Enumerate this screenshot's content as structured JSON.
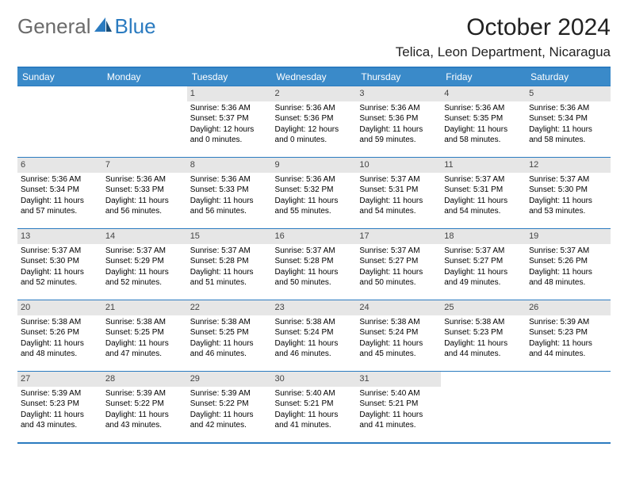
{
  "logo": {
    "general": "General",
    "blue": "Blue"
  },
  "title": "October 2024",
  "location": "Telica, Leon Department, Nicaragua",
  "colors": {
    "header_bg": "#3a8ac9",
    "border": "#2b7bc0",
    "daynum_bg": "#e6e6e6",
    "text": "#000000",
    "title_color": "#222222"
  },
  "layout": {
    "cols": 7,
    "rows": 5,
    "first_weekday": "Sunday",
    "col_width_pct": 14.28
  },
  "weekdays": [
    "Sunday",
    "Monday",
    "Tuesday",
    "Wednesday",
    "Thursday",
    "Friday",
    "Saturday"
  ],
  "weeks": [
    [
      {
        "day": "",
        "sunrise": "",
        "sunset": "",
        "daylight": ""
      },
      {
        "day": "",
        "sunrise": "",
        "sunset": "",
        "daylight": ""
      },
      {
        "day": "1",
        "sunrise": "Sunrise: 5:36 AM",
        "sunset": "Sunset: 5:37 PM",
        "daylight": "Daylight: 12 hours and 0 minutes."
      },
      {
        "day": "2",
        "sunrise": "Sunrise: 5:36 AM",
        "sunset": "Sunset: 5:36 PM",
        "daylight": "Daylight: 12 hours and 0 minutes."
      },
      {
        "day": "3",
        "sunrise": "Sunrise: 5:36 AM",
        "sunset": "Sunset: 5:36 PM",
        "daylight": "Daylight: 11 hours and 59 minutes."
      },
      {
        "day": "4",
        "sunrise": "Sunrise: 5:36 AM",
        "sunset": "Sunset: 5:35 PM",
        "daylight": "Daylight: 11 hours and 58 minutes."
      },
      {
        "day": "5",
        "sunrise": "Sunrise: 5:36 AM",
        "sunset": "Sunset: 5:34 PM",
        "daylight": "Daylight: 11 hours and 58 minutes."
      }
    ],
    [
      {
        "day": "6",
        "sunrise": "Sunrise: 5:36 AM",
        "sunset": "Sunset: 5:34 PM",
        "daylight": "Daylight: 11 hours and 57 minutes."
      },
      {
        "day": "7",
        "sunrise": "Sunrise: 5:36 AM",
        "sunset": "Sunset: 5:33 PM",
        "daylight": "Daylight: 11 hours and 56 minutes."
      },
      {
        "day": "8",
        "sunrise": "Sunrise: 5:36 AM",
        "sunset": "Sunset: 5:33 PM",
        "daylight": "Daylight: 11 hours and 56 minutes."
      },
      {
        "day": "9",
        "sunrise": "Sunrise: 5:36 AM",
        "sunset": "Sunset: 5:32 PM",
        "daylight": "Daylight: 11 hours and 55 minutes."
      },
      {
        "day": "10",
        "sunrise": "Sunrise: 5:37 AM",
        "sunset": "Sunset: 5:31 PM",
        "daylight": "Daylight: 11 hours and 54 minutes."
      },
      {
        "day": "11",
        "sunrise": "Sunrise: 5:37 AM",
        "sunset": "Sunset: 5:31 PM",
        "daylight": "Daylight: 11 hours and 54 minutes."
      },
      {
        "day": "12",
        "sunrise": "Sunrise: 5:37 AM",
        "sunset": "Sunset: 5:30 PM",
        "daylight": "Daylight: 11 hours and 53 minutes."
      }
    ],
    [
      {
        "day": "13",
        "sunrise": "Sunrise: 5:37 AM",
        "sunset": "Sunset: 5:30 PM",
        "daylight": "Daylight: 11 hours and 52 minutes."
      },
      {
        "day": "14",
        "sunrise": "Sunrise: 5:37 AM",
        "sunset": "Sunset: 5:29 PM",
        "daylight": "Daylight: 11 hours and 52 minutes."
      },
      {
        "day": "15",
        "sunrise": "Sunrise: 5:37 AM",
        "sunset": "Sunset: 5:28 PM",
        "daylight": "Daylight: 11 hours and 51 minutes."
      },
      {
        "day": "16",
        "sunrise": "Sunrise: 5:37 AM",
        "sunset": "Sunset: 5:28 PM",
        "daylight": "Daylight: 11 hours and 50 minutes."
      },
      {
        "day": "17",
        "sunrise": "Sunrise: 5:37 AM",
        "sunset": "Sunset: 5:27 PM",
        "daylight": "Daylight: 11 hours and 50 minutes."
      },
      {
        "day": "18",
        "sunrise": "Sunrise: 5:37 AM",
        "sunset": "Sunset: 5:27 PM",
        "daylight": "Daylight: 11 hours and 49 minutes."
      },
      {
        "day": "19",
        "sunrise": "Sunrise: 5:37 AM",
        "sunset": "Sunset: 5:26 PM",
        "daylight": "Daylight: 11 hours and 48 minutes."
      }
    ],
    [
      {
        "day": "20",
        "sunrise": "Sunrise: 5:38 AM",
        "sunset": "Sunset: 5:26 PM",
        "daylight": "Daylight: 11 hours and 48 minutes."
      },
      {
        "day": "21",
        "sunrise": "Sunrise: 5:38 AM",
        "sunset": "Sunset: 5:25 PM",
        "daylight": "Daylight: 11 hours and 47 minutes."
      },
      {
        "day": "22",
        "sunrise": "Sunrise: 5:38 AM",
        "sunset": "Sunset: 5:25 PM",
        "daylight": "Daylight: 11 hours and 46 minutes."
      },
      {
        "day": "23",
        "sunrise": "Sunrise: 5:38 AM",
        "sunset": "Sunset: 5:24 PM",
        "daylight": "Daylight: 11 hours and 46 minutes."
      },
      {
        "day": "24",
        "sunrise": "Sunrise: 5:38 AM",
        "sunset": "Sunset: 5:24 PM",
        "daylight": "Daylight: 11 hours and 45 minutes."
      },
      {
        "day": "25",
        "sunrise": "Sunrise: 5:38 AM",
        "sunset": "Sunset: 5:23 PM",
        "daylight": "Daylight: 11 hours and 44 minutes."
      },
      {
        "day": "26",
        "sunrise": "Sunrise: 5:39 AM",
        "sunset": "Sunset: 5:23 PM",
        "daylight": "Daylight: 11 hours and 44 minutes."
      }
    ],
    [
      {
        "day": "27",
        "sunrise": "Sunrise: 5:39 AM",
        "sunset": "Sunset: 5:23 PM",
        "daylight": "Daylight: 11 hours and 43 minutes."
      },
      {
        "day": "28",
        "sunrise": "Sunrise: 5:39 AM",
        "sunset": "Sunset: 5:22 PM",
        "daylight": "Daylight: 11 hours and 43 minutes."
      },
      {
        "day": "29",
        "sunrise": "Sunrise: 5:39 AM",
        "sunset": "Sunset: 5:22 PM",
        "daylight": "Daylight: 11 hours and 42 minutes."
      },
      {
        "day": "30",
        "sunrise": "Sunrise: 5:40 AM",
        "sunset": "Sunset: 5:21 PM",
        "daylight": "Daylight: 11 hours and 41 minutes."
      },
      {
        "day": "31",
        "sunrise": "Sunrise: 5:40 AM",
        "sunset": "Sunset: 5:21 PM",
        "daylight": "Daylight: 11 hours and 41 minutes."
      },
      {
        "day": "",
        "sunrise": "",
        "sunset": "",
        "daylight": ""
      },
      {
        "day": "",
        "sunrise": "",
        "sunset": "",
        "daylight": ""
      }
    ]
  ]
}
